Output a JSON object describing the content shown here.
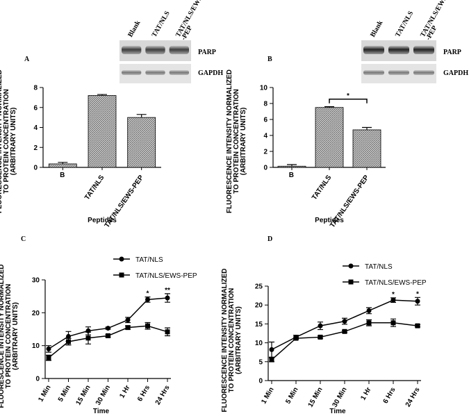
{
  "chart_data": [
    {
      "type": "bar",
      "panel_label": "A",
      "ylabel": "FLUORESCENCE  INTENSITY NORMALIZED\nTO PROTEIN CONCENTRATION\n(ARBITRARY UNITS)",
      "xlabel": "Peptides",
      "categories": [
        "B",
        "TAT/NLS",
        "TAT/NLS/EWS-PEP"
      ],
      "values": [
        0.35,
        7.2,
        5.0
      ],
      "errors": [
        0.15,
        0.1,
        0.3
      ],
      "ylim": [
        0,
        8
      ],
      "yticks": [
        0,
        2,
        4,
        6,
        8
      ],
      "color": "#888888",
      "blot": {
        "lanes": [
          "Blank",
          "TAT/NLS",
          "TAT/NLS/EWS\n-PEP"
        ],
        "proteins": [
          "PARP",
          "GAPDH"
        ]
      },
      "annotations": []
    },
    {
      "type": "bar",
      "panel_label": "B",
      "ylabel": "FLUORESCENCE  INTENSITY NORMALIZED\nTO PROTEIN CONCENTRATION\n(ARBITRARY UNITS)",
      "xlabel": "Peptides",
      "categories": [
        "B",
        "TAT/NLS",
        "TAT/NLS/EWS-PEP"
      ],
      "values": [
        0.15,
        7.5,
        4.7
      ],
      "errors": [
        0.2,
        0.1,
        0.3
      ],
      "ylim": [
        0,
        10
      ],
      "yticks": [
        0,
        2,
        4,
        6,
        8,
        10
      ],
      "color": "#888888",
      "blot": {
        "lanes": [
          "Blank",
          "TAT/NLS",
          "TAT/NLS/EWS\n-PEP"
        ],
        "proteins": [
          "PARP",
          "GAPDH"
        ]
      },
      "annotations": [
        "*"
      ]
    },
    {
      "type": "line",
      "panel_label": "C",
      "ylabel": "FLUORESCENCE  INTENSITY NORMALIZED\nTO PROTEIN CONCENTRATION\n(ARBITRARY UNITS)",
      "xlabel": "Time",
      "categories": [
        "1 Min",
        "5 Min",
        "15 Min",
        "30 Min",
        "1 Hr",
        "6 Hrs",
        "24 Hrs"
      ],
      "series": [
        {
          "name": "TAT/NLS",
          "color": "#000000",
          "marker": "circle",
          "values": [
            9,
            12.8,
            14.5,
            15.3,
            17.8,
            24,
            24.5
          ],
          "errors": [
            1,
            1.5,
            1.2,
            0.3,
            0.8,
            0.8,
            1.3
          ]
        },
        {
          "name": "TAT/NLS/EWS-PEP",
          "color": "#000000",
          "marker": "square",
          "values": [
            6.3,
            11.2,
            12.3,
            13,
            15.5,
            16,
            14.2
          ],
          "errors": [
            0.8,
            1,
            1.8,
            0.4,
            0.5,
            1,
            1.2
          ]
        }
      ],
      "ylim": [
        0,
        30
      ],
      "yticks": [
        0,
        10,
        20,
        30
      ],
      "annotations": [
        "*",
        "**"
      ]
    },
    {
      "type": "line",
      "panel_label": "D",
      "ylabel": "FLUORESCENCE  INTENSITY NORMALIZED\nTO PROTEIN CONCENTRATION\n(ARBITRARY UNITS)",
      "xlabel": "Time",
      "categories": [
        "1 Min",
        "5 Min",
        "15 Min",
        "30 Min",
        "1 Hr",
        "6 Hrs",
        "24 Hrs"
      ],
      "series": [
        {
          "name": "TAT/NLS",
          "color": "#000000",
          "marker": "circle",
          "values": [
            8.2,
            11.5,
            14.5,
            15.7,
            18.5,
            21.3,
            21
          ],
          "errors": [
            2,
            0.5,
            1,
            0.8,
            0.8,
            0.6,
            1
          ]
        },
        {
          "name": "TAT/NLS/EWS-PEP",
          "color": "#000000",
          "marker": "square",
          "values": [
            5.5,
            11.2,
            11.5,
            13,
            15.3,
            15.3,
            14.5
          ],
          "errors": [
            0.5,
            0.3,
            0.3,
            0.3,
            0.8,
            1,
            0.3
          ]
        }
      ],
      "ylim": [
        0,
        25
      ],
      "yticks": [
        0,
        5,
        10,
        15,
        20,
        25
      ],
      "annotations": [
        "*",
        "*"
      ]
    }
  ]
}
